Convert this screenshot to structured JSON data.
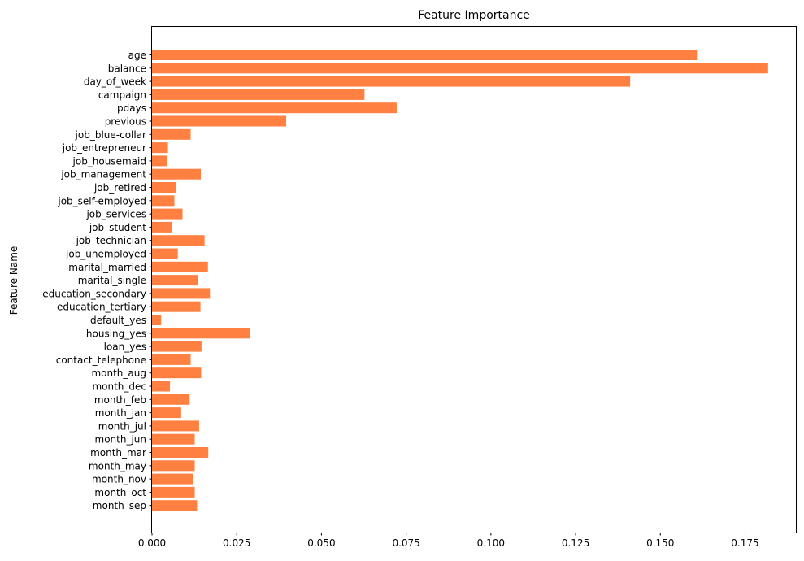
{
  "chart_data": {
    "type": "bar",
    "orientation": "horizontal",
    "title": "Feature Importance",
    "xlabel": "",
    "ylabel": "Feature Name",
    "xlim": [
      0,
      0.19
    ],
    "xticks": [
      0.0,
      0.025,
      0.05,
      0.075,
      0.1,
      0.125,
      0.15,
      0.175
    ],
    "xtick_labels": [
      "0.000",
      "0.025",
      "0.050",
      "0.075",
      "0.100",
      "0.125",
      "0.150",
      "0.175"
    ],
    "bar_color": "#ff8040",
    "grid": false,
    "categories": [
      "age",
      "balance",
      "day_of_week",
      "campaign",
      "pdays",
      "previous",
      "job_blue-collar",
      "job_entrepreneur",
      "job_housemaid",
      "job_management",
      "job_retired",
      "job_self-employed",
      "job_services",
      "job_student",
      "job_technician",
      "job_unemployed",
      "marital_married",
      "marital_single",
      "education_secondary",
      "education_tertiary",
      "default_yes",
      "housing_yes",
      "loan_yes",
      "contact_telephone",
      "month_aug",
      "month_dec",
      "month_feb",
      "month_jan",
      "month_jul",
      "month_jun",
      "month_mar",
      "month_may",
      "month_nov",
      "month_oct",
      "month_sep"
    ],
    "values": [
      0.1608,
      0.1818,
      0.1411,
      0.0627,
      0.0722,
      0.0396,
      0.0114,
      0.0047,
      0.0044,
      0.0144,
      0.0071,
      0.0066,
      0.009,
      0.0059,
      0.0155,
      0.0076,
      0.0165,
      0.0136,
      0.0171,
      0.0143,
      0.0027,
      0.0288,
      0.0146,
      0.0114,
      0.0145,
      0.0053,
      0.0111,
      0.0086,
      0.0139,
      0.0126,
      0.0166,
      0.0126,
      0.0122,
      0.0126,
      0.0133
    ]
  }
}
